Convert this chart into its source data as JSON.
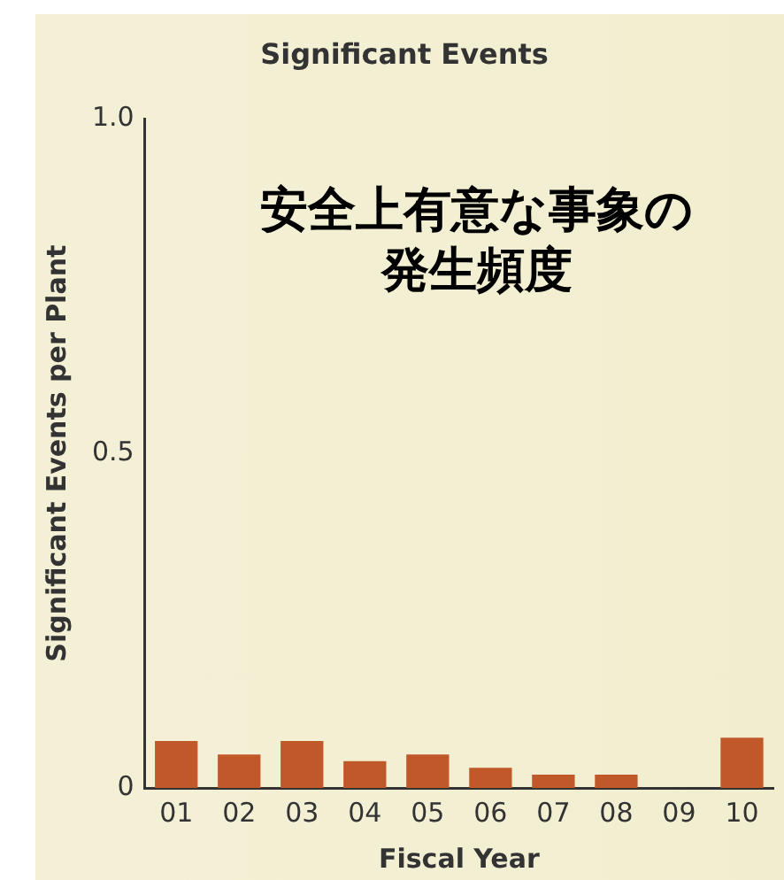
{
  "chart_data": {
    "type": "bar",
    "title": "Significant Events",
    "xlabel": "Fiscal Year",
    "ylabel": "Significant Events per Plant",
    "categories": [
      "01",
      "02",
      "03",
      "04",
      "05",
      "06",
      "07",
      "08",
      "09",
      "10"
    ],
    "values": [
      0.07,
      0.05,
      0.07,
      0.04,
      0.05,
      0.03,
      0.02,
      0.02,
      0,
      0.075
    ],
    "color": "#c0582a",
    "ylim": [
      0,
      1
    ],
    "yticks": [
      0,
      0.5,
      {
        "value": 1,
        "label": "1.0"
      }
    ],
    "grid": false,
    "legend": false,
    "annotations": [
      "安全上有意な事象の発生頻度"
    ]
  }
}
